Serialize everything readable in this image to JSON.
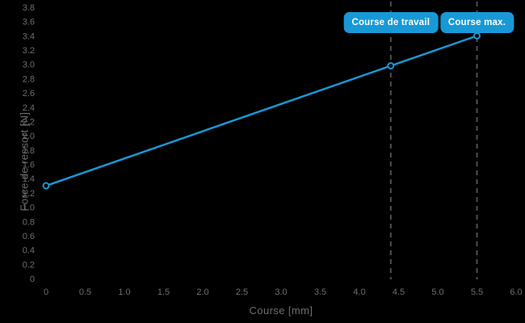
{
  "chart_data": {
    "type": "line",
    "title": "",
    "xlabel": "Course [mm]",
    "ylabel": "Force de ressort [N]",
    "xlim": [
      0,
      6.0
    ],
    "ylim": [
      0,
      3.8
    ],
    "x_ticks": [
      0,
      0.5,
      1.0,
      1.5,
      2.0,
      2.5,
      3.0,
      3.5,
      4.0,
      4.5,
      5.0,
      5.5,
      6.0
    ],
    "y_ticks": [
      0,
      0.2,
      0.4,
      0.6,
      0.8,
      1.0,
      1.2,
      1.4,
      1.6,
      1.8,
      2.0,
      2.2,
      2.4,
      2.6,
      2.8,
      3.0,
      3.2,
      3.4,
      3.6,
      3.8
    ],
    "grid": false,
    "background": "#000000",
    "series": [
      {
        "name": "Force de ressort",
        "x": [
          0,
          4.4,
          5.5
        ],
        "y": [
          1.3,
          2.98,
          3.4
        ],
        "marker": "open-circle"
      }
    ],
    "annotations": [
      {
        "label": "Course de travail",
        "x": 4.4
      },
      {
        "label": "Course max.",
        "x": 5.5
      }
    ],
    "colors": {
      "line": "#1899d6",
      "badge_bg": "#1899d6",
      "badge_text": "#ffffff",
      "tick_text": "#6e6e6e",
      "dashed_line": "#4f4f4f",
      "marker_fill": "#000000"
    }
  }
}
